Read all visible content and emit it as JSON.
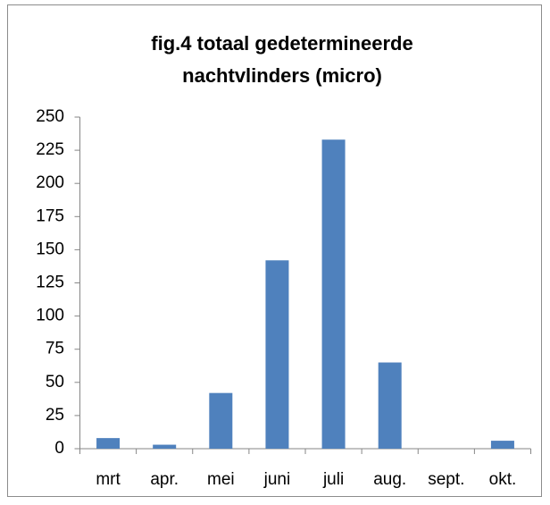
{
  "chart_data": {
    "type": "bar",
    "title": [
      "fig.4 totaal gedetermineerde",
      "nachtvlinders (micro)"
    ],
    "categories": [
      "mrt",
      "apr.",
      "mei",
      "juni",
      "juli",
      "aug.",
      "sept.",
      "okt."
    ],
    "values": [
      8,
      3,
      42,
      142,
      233,
      65,
      0,
      6
    ],
    "color": "#4f81bd",
    "ylim": [
      0,
      250
    ],
    "yticks": [
      0,
      25,
      50,
      75,
      100,
      125,
      150,
      175,
      200,
      225,
      250
    ],
    "grid": false
  }
}
